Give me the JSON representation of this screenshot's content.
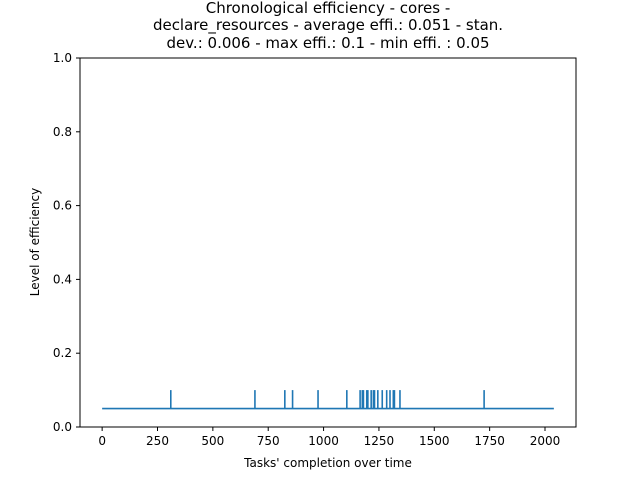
{
  "chart_data": {
    "type": "line",
    "title_lines": [
      "Chronological efficiency - cores -",
      "declare_resources - average effi.: 0.051 - stan.",
      "dev.: 0.006 - max effi.: 0.1 - min effi. : 0.05"
    ],
    "xlabel": "Tasks' completion over time",
    "ylabel": "Level of efficiency",
    "xlim": [
      -100,
      2140
    ],
    "ylim": [
      0,
      1
    ],
    "xticks": [
      0,
      250,
      500,
      750,
      1000,
      1250,
      1500,
      1750,
      2000
    ],
    "yticks": [
      0.0,
      0.2,
      0.4,
      0.6,
      0.8,
      1.0
    ],
    "xtick_labels": [
      "0",
      "250",
      "500",
      "750",
      "1000",
      "1250",
      "1500",
      "1750",
      "2000"
    ],
    "ytick_labels": [
      "0.0",
      "0.2",
      "0.4",
      "0.6",
      "0.8",
      "1.0"
    ],
    "grid": false,
    "series": [
      {
        "color": "#1f77b4",
        "baseline": 0.05,
        "x_range": [
          0,
          2040
        ],
        "spike_value": 0.1,
        "spikes_at": [
          310,
          690,
          825,
          860,
          975,
          1105,
          1165,
          1175,
          1180,
          1195,
          1200,
          1215,
          1225,
          1230,
          1245,
          1265,
          1285,
          1300,
          1315,
          1320,
          1345,
          1725
        ]
      }
    ]
  }
}
